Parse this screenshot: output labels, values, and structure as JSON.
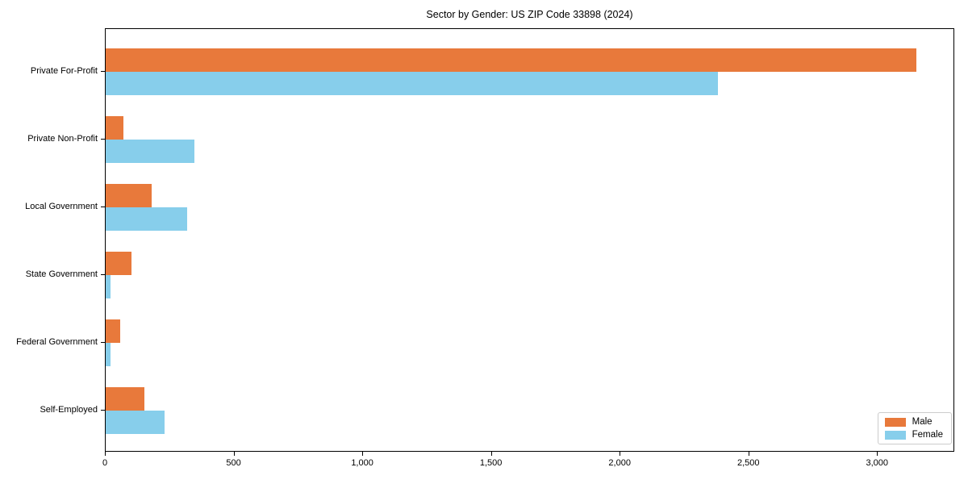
{
  "title": "Sector by Gender: US ZIP Code 33898 (2024)",
  "chart_data": {
    "type": "bar",
    "orientation": "horizontal",
    "title": "Sector by Gender: US ZIP Code 33898 (2024)",
    "categories": [
      "Private For-Profit",
      "Private Non-Profit",
      "Local Government",
      "State Government",
      "Federal Government",
      "Self-Employed"
    ],
    "series": [
      {
        "name": "Male",
        "color": "#E8793B",
        "values": [
          3150,
          70,
          180,
          100,
          55,
          150
        ]
      },
      {
        "name": "Female",
        "color": "#87CEEB",
        "values": [
          2380,
          345,
          315,
          20,
          20,
          230
        ]
      }
    ],
    "xlabel": "",
    "ylabel": "",
    "xlim": [
      0,
      3300
    ],
    "xticks": [
      0,
      500,
      1000,
      1500,
      2000,
      2500,
      3000
    ],
    "xtick_labels": [
      "0",
      "500",
      "1,000",
      "1,500",
      "2,000",
      "2,500",
      "3,000"
    ],
    "grid": false,
    "legend_position": "lower right"
  },
  "legend": {
    "items": [
      {
        "label": "Male",
        "color": "#E8793B"
      },
      {
        "label": "Female",
        "color": "#87CEEB"
      }
    ]
  }
}
